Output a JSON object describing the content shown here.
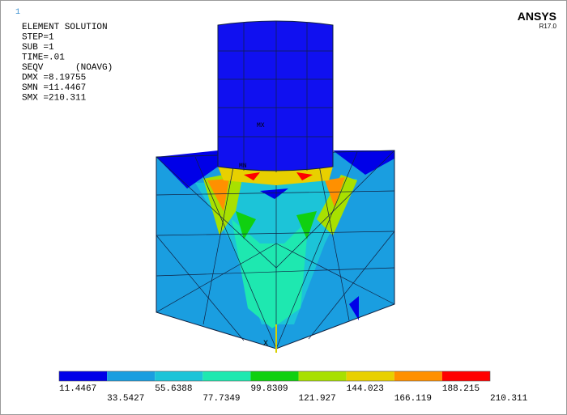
{
  "header": {
    "product": "ANSYS",
    "version": "R17.0",
    "window_number": "1"
  },
  "info": {
    "lines": [
      "ELEMENT SOLUTION",
      "STEP=1",
      "SUB =1",
      "TIME=.01",
      "SEQV      (NOAVG)",
      "DMX =8.19755",
      "SMN =11.4467",
      "SMX =210.311"
    ]
  },
  "model": {
    "max_label": "MX",
    "min_label": "MN",
    "axis_label": "X"
  },
  "legend": {
    "labels": [
      "11.4467",
      "33.5427",
      "55.6388",
      "77.7349",
      "99.8309",
      "121.927",
      "144.023",
      "166.119",
      "188.215",
      "210.311"
    ],
    "colors": [
      "#0000e8",
      "#1a9ee0",
      "#1cc4d8",
      "#1ee8b0",
      "#10d010",
      "#a8e000",
      "#e8d000",
      "#ff9000",
      "#ff0000"
    ]
  }
}
